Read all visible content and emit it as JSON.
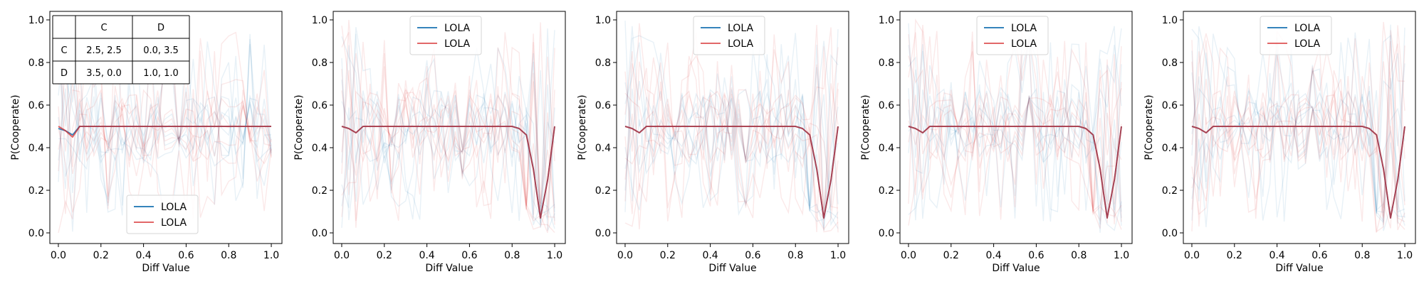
{
  "chart_data": [
    {
      "type": "line",
      "xlabel": "Diff Value",
      "ylabel": "P(Cooperate)",
      "xlim": [
        -0.04,
        1.05
      ],
      "ylim": [
        -0.05,
        1.04
      ],
      "xticks": [
        "0.0",
        "0.2",
        "0.4",
        "0.6",
        "0.8",
        "1.0"
      ],
      "yticks": [
        "0.0",
        "0.2",
        "0.4",
        "0.6",
        "0.8",
        "1.0"
      ],
      "grid": false,
      "legend": {
        "placement": "bottom-center",
        "entries": [
          "LOLA",
          "LOLA"
        ]
      },
      "payoff_table": {
        "col_headers": [
          "C",
          "D"
        ],
        "rows": [
          {
            "label": "C",
            "cells": [
              "2.5, 2.5",
              "0.0, 3.5"
            ]
          },
          {
            "label": "D",
            "cells": [
              "3.5, 0.0",
              "1.0, 1.0"
            ]
          }
        ]
      },
      "series": [
        {
          "name": "LOLA",
          "color": "#1f77b4",
          "x": [
            0.0,
            0.033,
            0.067,
            0.1,
            0.2,
            0.3,
            0.4,
            0.5,
            0.6,
            0.7,
            0.8,
            0.9,
            1.0
          ],
          "values": [
            0.49,
            0.48,
            0.46,
            0.5,
            0.5,
            0.5,
            0.5,
            0.5,
            0.5,
            0.5,
            0.5,
            0.5,
            0.5
          ]
        },
        {
          "name": "LOLA",
          "color": "#d62728",
          "x": [
            0.0,
            0.033,
            0.067,
            0.1,
            0.2,
            0.3,
            0.4,
            0.5,
            0.6,
            0.7,
            0.8,
            0.9,
            1.0
          ],
          "values": [
            0.5,
            0.48,
            0.45,
            0.5,
            0.5,
            0.5,
            0.5,
            0.5,
            0.5,
            0.5,
            0.5,
            0.5,
            0.5
          ]
        }
      ]
    },
    {
      "type": "line",
      "xlabel": "Diff Value",
      "ylabel": "P(Cooperate)",
      "xlim": [
        -0.04,
        1.05
      ],
      "ylim": [
        -0.05,
        1.04
      ],
      "xticks": [
        "0.0",
        "0.2",
        "0.4",
        "0.6",
        "0.8",
        "1.0"
      ],
      "yticks": [
        "0.0",
        "0.2",
        "0.4",
        "0.6",
        "0.8",
        "1.0"
      ],
      "grid": false,
      "legend": {
        "placement": "top-center",
        "entries": [
          "LOLA",
          "LOLA"
        ]
      },
      "series": [
        {
          "name": "LOLA",
          "color": "#1f77b4",
          "x": [
            0.0,
            0.033,
            0.067,
            0.1,
            0.2,
            0.3,
            0.4,
            0.5,
            0.6,
            0.7,
            0.8,
            0.833,
            0.867,
            0.9,
            0.933,
            0.967,
            1.0
          ],
          "values": [
            0.5,
            0.49,
            0.47,
            0.5,
            0.5,
            0.5,
            0.5,
            0.5,
            0.5,
            0.5,
            0.5,
            0.49,
            0.46,
            0.3,
            0.07,
            0.25,
            0.5
          ]
        },
        {
          "name": "LOLA",
          "color": "#d62728",
          "x": [
            0.0,
            0.033,
            0.067,
            0.1,
            0.2,
            0.3,
            0.4,
            0.5,
            0.6,
            0.7,
            0.8,
            0.833,
            0.867,
            0.9,
            0.933,
            0.967,
            1.0
          ],
          "values": [
            0.5,
            0.49,
            0.47,
            0.5,
            0.5,
            0.5,
            0.5,
            0.5,
            0.5,
            0.5,
            0.5,
            0.49,
            0.46,
            0.3,
            0.07,
            0.25,
            0.5
          ]
        }
      ]
    },
    {
      "type": "line",
      "xlabel": "Diff Value",
      "ylabel": "P(Cooperate)",
      "xlim": [
        -0.04,
        1.05
      ],
      "ylim": [
        -0.05,
        1.04
      ],
      "xticks": [
        "0.0",
        "0.2",
        "0.4",
        "0.6",
        "0.8",
        "1.0"
      ],
      "yticks": [
        "0.0",
        "0.2",
        "0.4",
        "0.6",
        "0.8",
        "1.0"
      ],
      "grid": false,
      "legend": {
        "placement": "top-center",
        "entries": [
          "LOLA",
          "LOLA"
        ]
      },
      "series": [
        {
          "name": "LOLA",
          "color": "#1f77b4",
          "x": [
            0.0,
            0.033,
            0.067,
            0.1,
            0.2,
            0.3,
            0.4,
            0.5,
            0.6,
            0.7,
            0.8,
            0.833,
            0.867,
            0.9,
            0.933,
            0.967,
            1.0
          ],
          "values": [
            0.5,
            0.49,
            0.47,
            0.5,
            0.5,
            0.5,
            0.5,
            0.5,
            0.5,
            0.5,
            0.5,
            0.49,
            0.46,
            0.3,
            0.07,
            0.25,
            0.5
          ]
        },
        {
          "name": "LOLA",
          "color": "#d62728",
          "x": [
            0.0,
            0.033,
            0.067,
            0.1,
            0.2,
            0.3,
            0.4,
            0.5,
            0.6,
            0.7,
            0.8,
            0.833,
            0.867,
            0.9,
            0.933,
            0.967,
            1.0
          ],
          "values": [
            0.5,
            0.49,
            0.47,
            0.5,
            0.5,
            0.5,
            0.5,
            0.5,
            0.5,
            0.5,
            0.5,
            0.49,
            0.46,
            0.3,
            0.07,
            0.25,
            0.5
          ]
        }
      ]
    },
    {
      "type": "line",
      "xlabel": "Diff Value",
      "ylabel": "P(Cooperate)",
      "xlim": [
        -0.04,
        1.05
      ],
      "ylim": [
        -0.05,
        1.04
      ],
      "xticks": [
        "0.0",
        "0.2",
        "0.4",
        "0.6",
        "0.8",
        "1.0"
      ],
      "yticks": [
        "0.0",
        "0.2",
        "0.4",
        "0.6",
        "0.8",
        "1.0"
      ],
      "grid": false,
      "legend": {
        "placement": "top-center",
        "entries": [
          "LOLA",
          "LOLA"
        ]
      },
      "series": [
        {
          "name": "LOLA",
          "color": "#1f77b4",
          "x": [
            0.0,
            0.033,
            0.067,
            0.1,
            0.2,
            0.3,
            0.4,
            0.5,
            0.6,
            0.7,
            0.8,
            0.833,
            0.867,
            0.9,
            0.933,
            0.967,
            1.0
          ],
          "values": [
            0.5,
            0.49,
            0.47,
            0.5,
            0.5,
            0.5,
            0.5,
            0.5,
            0.5,
            0.5,
            0.5,
            0.49,
            0.46,
            0.3,
            0.07,
            0.25,
            0.5
          ]
        },
        {
          "name": "LOLA",
          "color": "#d62728",
          "x": [
            0.0,
            0.033,
            0.067,
            0.1,
            0.2,
            0.3,
            0.4,
            0.5,
            0.6,
            0.7,
            0.8,
            0.833,
            0.867,
            0.9,
            0.933,
            0.967,
            1.0
          ],
          "values": [
            0.5,
            0.49,
            0.47,
            0.5,
            0.5,
            0.5,
            0.5,
            0.5,
            0.5,
            0.5,
            0.5,
            0.49,
            0.46,
            0.3,
            0.07,
            0.25,
            0.5
          ]
        }
      ]
    },
    {
      "type": "line",
      "xlabel": "Diff Value",
      "ylabel": "P(Cooperate)",
      "xlim": [
        -0.04,
        1.05
      ],
      "ylim": [
        -0.05,
        1.04
      ],
      "xticks": [
        "0.0",
        "0.2",
        "0.4",
        "0.6",
        "0.8",
        "1.0"
      ],
      "yticks": [
        "0.0",
        "0.2",
        "0.4",
        "0.6",
        "0.8",
        "1.0"
      ],
      "grid": false,
      "legend": {
        "placement": "top-center",
        "entries": [
          "LOLA",
          "LOLA"
        ]
      },
      "series": [
        {
          "name": "LOLA",
          "color": "#1f77b4",
          "x": [
            0.0,
            0.033,
            0.067,
            0.1,
            0.2,
            0.3,
            0.4,
            0.5,
            0.6,
            0.7,
            0.8,
            0.833,
            0.867,
            0.9,
            0.933,
            0.967,
            1.0
          ],
          "values": [
            0.5,
            0.49,
            0.47,
            0.5,
            0.5,
            0.5,
            0.5,
            0.5,
            0.5,
            0.5,
            0.5,
            0.49,
            0.46,
            0.3,
            0.07,
            0.25,
            0.5
          ]
        },
        {
          "name": "LOLA",
          "color": "#d62728",
          "x": [
            0.0,
            0.033,
            0.067,
            0.1,
            0.2,
            0.3,
            0.4,
            0.5,
            0.6,
            0.7,
            0.8,
            0.833,
            0.867,
            0.9,
            0.933,
            0.967,
            1.0
          ],
          "values": [
            0.5,
            0.49,
            0.47,
            0.5,
            0.5,
            0.5,
            0.5,
            0.5,
            0.5,
            0.5,
            0.5,
            0.49,
            0.46,
            0.3,
            0.07,
            0.25,
            0.5
          ]
        }
      ]
    }
  ]
}
